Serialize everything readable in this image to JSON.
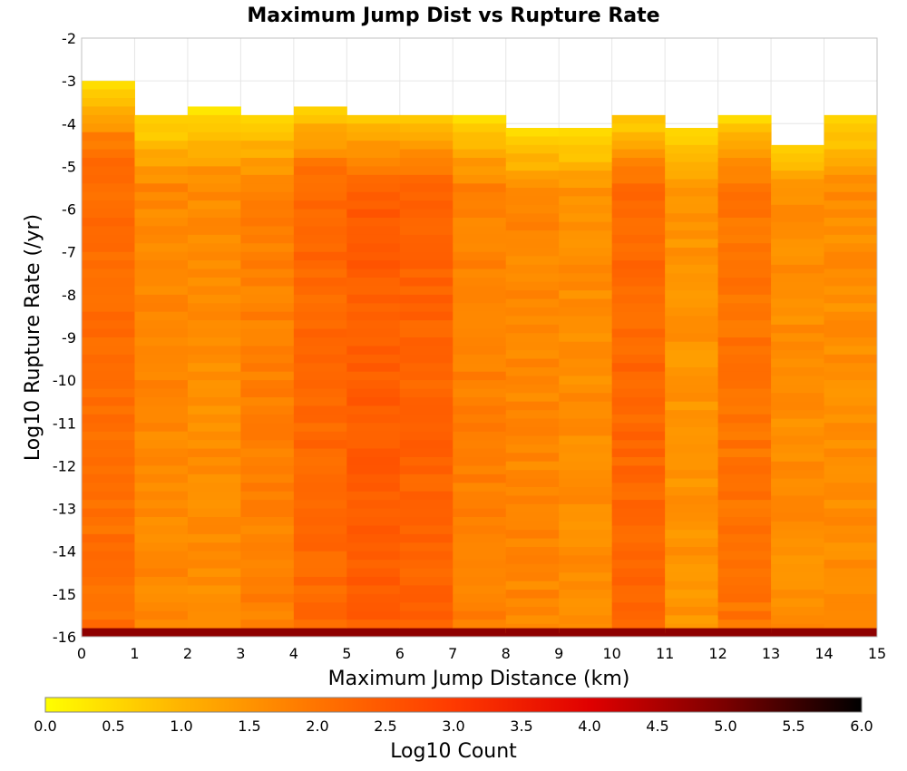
{
  "chart_data": {
    "type": "heatmap",
    "title": "Maximum Jump Dist vs Rupture Rate",
    "xlabel": "Maximum Jump Distance (km)",
    "ylabel": "Log10 Rupture Rate (/yr)",
    "xlim": [
      0,
      15
    ],
    "ylim": [
      -16,
      -2
    ],
    "x_ticks": [
      "0",
      "1",
      "2",
      "3",
      "4",
      "5",
      "6",
      "7",
      "8",
      "9",
      "10",
      "11",
      "12",
      "13",
      "14",
      "15"
    ],
    "y_ticks": [
      "-2",
      "-3",
      "-4",
      "-5",
      "-6",
      "-7",
      "-8",
      "-9",
      "-10",
      "-11",
      "-12",
      "-13",
      "-14",
      "-15",
      "-16"
    ],
    "grid": true,
    "x_bins": [
      0.5,
      1.5,
      2.5,
      3.5,
      4.5,
      5.5,
      6.5,
      7.5,
      8.5,
      9.5,
      10.5,
      11.5,
      12.5,
      13.5,
      14.5
    ],
    "y_bin_width": 0.2,
    "top_edges": [
      -3.0,
      -3.8,
      -3.6,
      -3.8,
      -3.6,
      -3.8,
      -3.8,
      -3.8,
      -4.1,
      -4.1,
      -3.8,
      -4.1,
      -3.8,
      -4.1,
      -3.8
    ],
    "column_profiles": [
      2.1,
      1.7,
      1.6,
      1.8,
      2.2,
      2.4,
      2.3,
      1.8,
      1.7,
      1.6,
      2.2,
      1.5,
      2.0,
      1.6,
      1.6
    ],
    "bottom_row_value": 4.8,
    "missing_cells": [
      [
        8,
        -4.0
      ],
      [
        13,
        -4.3
      ]
    ],
    "colorbar": {
      "label": "Log10 Count",
      "min": 0.0,
      "max": 6.0,
      "ticks": [
        "0.0",
        "0.5",
        "1.0",
        "1.5",
        "2.0",
        "2.5",
        "3.0",
        "3.5",
        "4.0",
        "4.5",
        "5.0",
        "5.5",
        "6.0"
      ],
      "colors": [
        "#ffff00",
        "#ffb300",
        "#ff7400",
        "#ff3a00",
        "#e00000",
        "#7a0000",
        "#000000"
      ]
    }
  }
}
